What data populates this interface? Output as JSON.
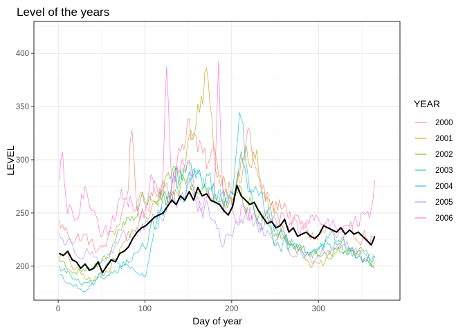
{
  "chart_data": {
    "type": "line",
    "title": "Level of the years",
    "xlabel": "Day of year",
    "ylabel": "LEVEL",
    "xlim": [
      -28,
      394
    ],
    "ylim": [
      168,
      430
    ],
    "xticks": [
      0,
      100,
      200,
      300
    ],
    "yticks": [
      200,
      250,
      300,
      350,
      400
    ],
    "grid": true,
    "legend": {
      "title": "YEAR",
      "placement": "right"
    },
    "series": [
      {
        "name": "2000",
        "color": "#F8766D",
        "x": [
          1,
          10,
          20,
          30,
          40,
          50,
          60,
          70,
          80,
          85,
          90,
          100,
          110,
          120,
          130,
          140,
          150,
          160,
          170,
          180,
          190,
          200,
          210,
          220,
          230,
          240,
          250,
          260,
          270,
          280,
          290,
          300,
          310,
          320,
          330,
          340,
          350,
          360,
          365
        ],
        "y": [
          240,
          232,
          226,
          228,
          218,
          214,
          228,
          242,
          268,
          338,
          264,
          252,
          270,
          282,
          276,
          300,
          344,
          312,
          292,
          300,
          276,
          282,
          286,
          328,
          280,
          262,
          254,
          262,
          242,
          238,
          230,
          228,
          234,
          226,
          230,
          224,
          232,
          226,
          230
        ]
      },
      {
        "name": "2001",
        "color": "#C49A00",
        "x": [
          1,
          10,
          20,
          30,
          40,
          50,
          60,
          70,
          80,
          90,
          100,
          110,
          120,
          130,
          140,
          150,
          160,
          170,
          180,
          190,
          200,
          210,
          220,
          230,
          240,
          250,
          260,
          270,
          280,
          290,
          300,
          310,
          320,
          330,
          340,
          350,
          360,
          365
        ],
        "y": [
          210,
          208,
          196,
          190,
          186,
          192,
          202,
          212,
          228,
          236,
          246,
          254,
          262,
          268,
          272,
          318,
          336,
          385,
          318,
          290,
          270,
          284,
          300,
          296,
          258,
          250,
          236,
          226,
          216,
          206,
          198,
          204,
          212,
          222,
          214,
          206,
          202,
          205
        ]
      },
      {
        "name": "2002",
        "color": "#53B400",
        "x": [
          1,
          10,
          20,
          30,
          40,
          50,
          60,
          70,
          80,
          90,
          100,
          110,
          120,
          130,
          140,
          150,
          160,
          170,
          180,
          190,
          200,
          210,
          220,
          230,
          240,
          250,
          260,
          270,
          280,
          290,
          300,
          310,
          320,
          330,
          340,
          350,
          360,
          365
        ],
        "y": [
          206,
          200,
          194,
          194,
          196,
          204,
          216,
          232,
          246,
          252,
          262,
          268,
          264,
          282,
          270,
          278,
          272,
          276,
          266,
          258,
          252,
          262,
          256,
          250,
          244,
          238,
          232,
          224,
          220,
          212,
          208,
          212,
          214,
          218,
          214,
          210,
          204,
          206
        ]
      },
      {
        "name": "2003",
        "color": "#00C094",
        "x": [
          1,
          10,
          20,
          30,
          40,
          50,
          60,
          70,
          80,
          90,
          100,
          110,
          120,
          130,
          140,
          150,
          160,
          170,
          180,
          190,
          200,
          210,
          220,
          230,
          240,
          250,
          260,
          270,
          280,
          290,
          300,
          310,
          320,
          330,
          340,
          350,
          360,
          365
        ],
        "y": [
          198,
          194,
          186,
          182,
          184,
          186,
          194,
          200,
          206,
          212,
          218,
          236,
          256,
          268,
          280,
          292,
          276,
          286,
          270,
          262,
          276,
          296,
          268,
          254,
          240,
          228,
          222,
          216,
          212,
          210,
          214,
          222,
          220,
          214,
          210,
          206,
          204,
          207
        ]
      },
      {
        "name": "2004",
        "color": "#00B6EB",
        "x": [
          1,
          10,
          20,
          30,
          40,
          50,
          60,
          70,
          80,
          90,
          100,
          110,
          120,
          130,
          140,
          150,
          160,
          170,
          180,
          190,
          200,
          210,
          220,
          230,
          240,
          250,
          260,
          270,
          280,
          290,
          300,
          310,
          320,
          330,
          340,
          350,
          360,
          365
        ],
        "y": [
          194,
          186,
          180,
          178,
          184,
          192,
          202,
          204,
          196,
          192,
          190,
          232,
          248,
          266,
          266,
          282,
          286,
          282,
          262,
          262,
          258,
          352,
          264,
          262,
          248,
          236,
          226,
          220,
          214,
          214,
          220,
          226,
          224,
          220,
          214,
          210,
          204,
          206
        ]
      },
      {
        "name": "2005",
        "color": "#A58AFF",
        "x": [
          1,
          10,
          20,
          30,
          40,
          50,
          60,
          70,
          80,
          90,
          100,
          110,
          120,
          130,
          140,
          150,
          160,
          170,
          180,
          190,
          200,
          210,
          220,
          230,
          240,
          250,
          260,
          270,
          280,
          290,
          300,
          310,
          320,
          330,
          340,
          350,
          360,
          365
        ],
        "y": [
          230,
          222,
          216,
          218,
          210,
          206,
          210,
          218,
          226,
          232,
          236,
          246,
          250,
          262,
          268,
          272,
          262,
          254,
          238,
          222,
          232,
          242,
          246,
          236,
          230,
          226,
          222,
          216,
          212,
          210,
          208,
          214,
          220,
          224,
          214,
          208,
          212,
          210
        ]
      },
      {
        "name": "2006",
        "color": "#FB61D7",
        "x": [
          1,
          5,
          10,
          20,
          30,
          40,
          50,
          60,
          70,
          80,
          90,
          100,
          110,
          120,
          125,
          130,
          140,
          150,
          160,
          170,
          180,
          185,
          190,
          200,
          210,
          220,
          230,
          240,
          250,
          260,
          270,
          280,
          290,
          300,
          310,
          320,
          330,
          340,
          350,
          360,
          365
        ],
        "y": [
          270,
          298,
          250,
          246,
          268,
          262,
          238,
          230,
          262,
          272,
          252,
          248,
          282,
          262,
          415,
          274,
          296,
          288,
          266,
          262,
          280,
          412,
          262,
          252,
          254,
          256,
          244,
          242,
          238,
          248,
          242,
          232,
          238,
          248,
          240,
          234,
          228,
          236,
          244,
          250,
          278
        ]
      }
    ],
    "mean_series": {
      "color": "#000000",
      "x": [
        1,
        6,
        11,
        16,
        21,
        26,
        31,
        36,
        41,
        46,
        51,
        56,
        61,
        66,
        71,
        76,
        81,
        86,
        91,
        96,
        101,
        106,
        111,
        116,
        121,
        126,
        131,
        136,
        141,
        146,
        151,
        156,
        161,
        166,
        171,
        176,
        181,
        186,
        191,
        196,
        201,
        206,
        211,
        216,
        221,
        226,
        231,
        236,
        241,
        246,
        251,
        256,
        261,
        266,
        271,
        276,
        281,
        286,
        291,
        296,
        301,
        306,
        311,
        316,
        321,
        326,
        331,
        336,
        341,
        346,
        351,
        356,
        361,
        365
      ],
      "y": [
        212,
        210,
        214,
        206,
        204,
        198,
        202,
        196,
        198,
        204,
        194,
        200,
        206,
        204,
        212,
        214,
        218,
        226,
        232,
        236,
        238,
        242,
        246,
        248,
        250,
        256,
        262,
        258,
        266,
        262,
        270,
        262,
        274,
        266,
        268,
        262,
        260,
        258,
        252,
        248,
        256,
        276,
        266,
        262,
        258,
        260,
        252,
        246,
        240,
        242,
        236,
        238,
        244,
        232,
        236,
        228,
        230,
        232,
        228,
        226,
        230,
        238,
        236,
        234,
        232,
        236,
        230,
        234,
        230,
        232,
        228,
        224,
        220,
        228
      ]
    }
  }
}
